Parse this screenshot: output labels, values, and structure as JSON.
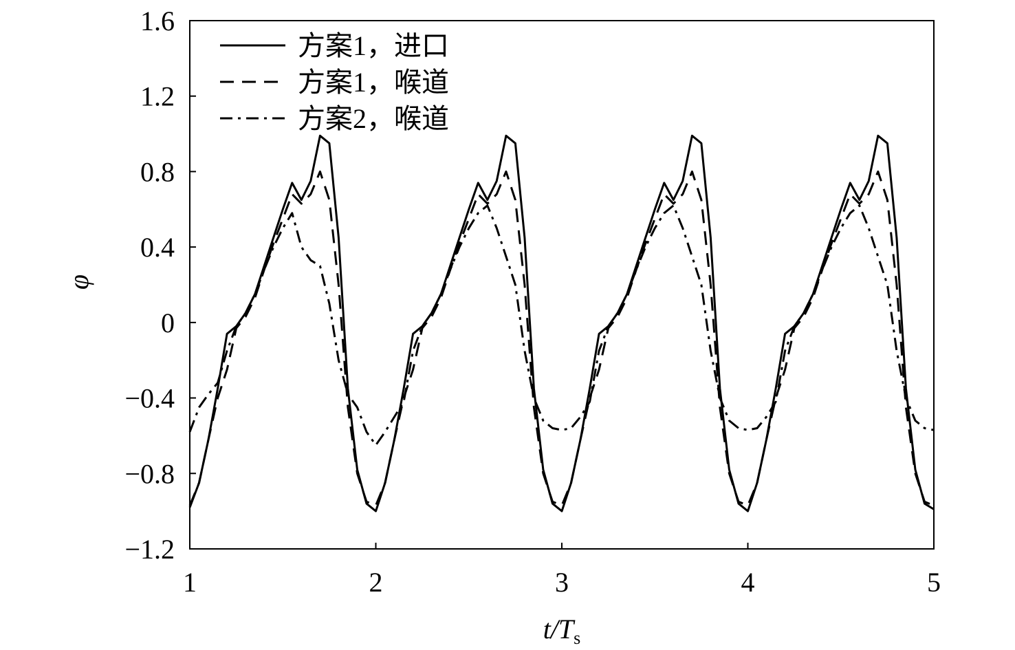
{
  "chart_data": {
    "type": "line",
    "x_label": "t/T",
    "x_label_subscript": "s",
    "y_label": "φ",
    "x": [
      1,
      1.05,
      1.1,
      1.15,
      1.2,
      1.25,
      1.3,
      1.35,
      1.4,
      1.45,
      1.5,
      1.55,
      1.6,
      1.65,
      1.7,
      1.75,
      1.8,
      1.85,
      1.9,
      1.95,
      2,
      2.05,
      2.1,
      2.15,
      2.2,
      2.25,
      2.3,
      2.35,
      2.4,
      2.45,
      2.5,
      2.55,
      2.6,
      2.65,
      2.7,
      2.75,
      2.8,
      2.85,
      2.9,
      2.95,
      3,
      3.05,
      3.1,
      3.15,
      3.2,
      3.25,
      3.3,
      3.35,
      3.4,
      3.45,
      3.5,
      3.55,
      3.6,
      3.65,
      3.7,
      3.75,
      3.8,
      3.85,
      3.9,
      3.95,
      4,
      4.05,
      4.1,
      4.15,
      4.2,
      4.25,
      4.3,
      4.35,
      4.4,
      4.45,
      4.5,
      4.55,
      4.6,
      4.65,
      4.7,
      4.75,
      4.8,
      4.85,
      4.9,
      4.95,
      5
    ],
    "series": [
      {
        "name": "方案1，进口",
        "color": "#000000",
        "dash": "solid",
        "values": [
          -0.98,
          -0.85,
          -0.62,
          -0.35,
          -0.06,
          -0.02,
          0.05,
          0.15,
          0.3,
          0.45,
          0.6,
          0.74,
          0.65,
          0.75,
          0.99,
          0.95,
          0.45,
          -0.35,
          -0.78,
          -0.96,
          -1.0,
          -0.85,
          -0.62,
          -0.35,
          -0.06,
          -0.02,
          0.05,
          0.15,
          0.3,
          0.45,
          0.6,
          0.74,
          0.65,
          0.75,
          0.99,
          0.95,
          0.45,
          -0.35,
          -0.78,
          -0.96,
          -1.0,
          -0.85,
          -0.62,
          -0.35,
          -0.06,
          -0.02,
          0.05,
          0.15,
          0.3,
          0.45,
          0.6,
          0.74,
          0.65,
          0.75,
          0.99,
          0.95,
          0.45,
          -0.35,
          -0.78,
          -0.96,
          -1.0,
          -0.85,
          -0.62,
          -0.35,
          -0.06,
          -0.02,
          0.05,
          0.15,
          0.3,
          0.45,
          0.6,
          0.74,
          0.65,
          0.75,
          0.99,
          0.95,
          0.45,
          -0.35,
          -0.78,
          -0.96,
          -0.99
        ]
      },
      {
        "name": "方案1，喉道",
        "color": "#000000",
        "dash": "dashed",
        "values": [
          -0.97,
          -0.85,
          -0.62,
          -0.4,
          -0.25,
          -0.03,
          0.03,
          0.13,
          0.28,
          0.42,
          0.55,
          0.68,
          0.63,
          0.68,
          0.8,
          0.65,
          0.2,
          -0.45,
          -0.8,
          -0.95,
          -0.97,
          -0.85,
          -0.62,
          -0.4,
          -0.25,
          -0.03,
          0.03,
          0.13,
          0.28,
          0.42,
          0.55,
          0.68,
          0.63,
          0.68,
          0.8,
          0.65,
          0.2,
          -0.45,
          -0.8,
          -0.95,
          -0.97,
          -0.85,
          -0.62,
          -0.4,
          -0.25,
          -0.03,
          0.03,
          0.13,
          0.28,
          0.42,
          0.55,
          0.68,
          0.63,
          0.68,
          0.8,
          0.65,
          0.2,
          -0.45,
          -0.8,
          -0.95,
          -0.97,
          -0.85,
          -0.62,
          -0.4,
          -0.25,
          -0.03,
          0.03,
          0.13,
          0.28,
          0.42,
          0.55,
          0.68,
          0.63,
          0.68,
          0.8,
          0.65,
          0.2,
          -0.45,
          -0.8,
          -0.95,
          -0.97
        ]
      },
      {
        "name": "方案2，喉道",
        "color": "#000000",
        "dash": "dashdot",
        "values": [
          -0.58,
          -0.45,
          -0.38,
          -0.32,
          -0.15,
          -0.02,
          0.05,
          0.15,
          0.28,
          0.4,
          0.5,
          0.58,
          0.4,
          0.33,
          0.3,
          0.1,
          -0.2,
          -0.38,
          -0.45,
          -0.58,
          -0.65,
          -0.58,
          -0.5,
          -0.42,
          -0.15,
          -0.02,
          0.05,
          0.15,
          0.28,
          0.4,
          0.5,
          0.58,
          0.62,
          0.5,
          0.35,
          0.2,
          -0.15,
          -0.4,
          -0.52,
          -0.56,
          -0.57,
          -0.56,
          -0.5,
          -0.42,
          -0.15,
          -0.02,
          0.05,
          0.15,
          0.28,
          0.4,
          0.5,
          0.58,
          0.62,
          0.5,
          0.35,
          0.2,
          -0.15,
          -0.4,
          -0.52,
          -0.56,
          -0.57,
          -0.56,
          -0.5,
          -0.42,
          -0.15,
          -0.02,
          0.05,
          0.15,
          0.28,
          0.4,
          0.5,
          0.58,
          0.62,
          0.5,
          0.35,
          0.2,
          -0.15,
          -0.4,
          -0.52,
          -0.56,
          -0.57
        ]
      }
    ],
    "xlim": [
      1,
      5
    ],
    "xticks": [
      1,
      2,
      3,
      4,
      5
    ],
    "ylim": [
      -1.2,
      1.6
    ],
    "yticks": [
      {
        "value": -1.2,
        "label": "−1.2"
      },
      {
        "value": -0.8,
        "label": "−0.8"
      },
      {
        "value": -0.4,
        "label": "−0.4"
      },
      0,
      0.4,
      0.8,
      1.2,
      1.6
    ],
    "legend": "upper left"
  }
}
